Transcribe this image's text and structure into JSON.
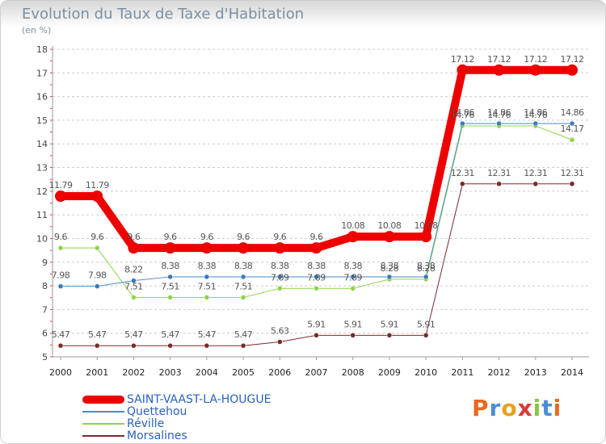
{
  "title": "Evolution du Taux de Taxe d'Habitation",
  "unit_label": "(en %)",
  "logo": {
    "letters": [
      "P",
      "r",
      "o",
      "x",
      "i",
      "t",
      "i"
    ],
    "colors": [
      "#e86a20",
      "#4a8fd6",
      "#e8a020",
      "#d83a3a",
      "#8cc63f",
      "#4a8fd6",
      "#e86a20"
    ]
  },
  "chart_data": {
    "type": "line",
    "x": [
      "2000",
      "2001",
      "2002",
      "2003",
      "2004",
      "2005",
      "2006",
      "2007",
      "2008",
      "2009",
      "2010",
      "2011",
      "2012",
      "2013",
      "2014"
    ],
    "ylim": [
      5,
      18
    ],
    "yticks": [
      5,
      6,
      7,
      8,
      9,
      10,
      11,
      12,
      13,
      14,
      15,
      16,
      17,
      18
    ],
    "grid": "horizontal-dashed",
    "legend_placement": "bottom-left",
    "series": [
      {
        "name": "SAINT-VAAST-LA-HOUGUE",
        "color": "#ee0000",
        "width": 10,
        "values": [
          11.79,
          11.79,
          9.6,
          9.6,
          9.6,
          9.6,
          9.6,
          9.6,
          10.08,
          10.08,
          10.08,
          17.12,
          17.12,
          17.12,
          17.12
        ],
        "labels": [
          "11.79",
          "11.79",
          "9.6",
          "9.6",
          "9.6",
          "9.6",
          "9.6",
          "9.6",
          "10.08",
          "10.08",
          "10.08",
          "17.12",
          "17.12",
          "17.12",
          "17.12"
        ]
      },
      {
        "name": "Quettehou",
        "color": "#4a8ac8",
        "width": 1,
        "values": [
          7.98,
          7.98,
          8.22,
          8.38,
          8.38,
          8.38,
          8.38,
          8.38,
          8.38,
          8.38,
          8.38,
          14.86,
          14.86,
          14.86,
          14.86
        ],
        "labels": [
          "7.98",
          "7.98",
          "8.22",
          "8.38",
          "8.38",
          "8.38",
          "8.38",
          "8.38",
          "8.38",
          "8.38",
          "8.38",
          "14.86",
          "14.86",
          "14.86",
          "14.86"
        ]
      },
      {
        "name": "Réville",
        "color": "#8ed44a",
        "width": 1,
        "values": [
          9.6,
          9.6,
          7.51,
          7.51,
          7.51,
          7.51,
          7.89,
          7.89,
          7.89,
          8.28,
          8.28,
          14.76,
          14.76,
          14.76,
          14.17
        ],
        "labels": [
          "9.6",
          "9.6",
          "7.51",
          "7.51",
          "7.51",
          "7.51",
          "7.89",
          "7.89",
          "7.89",
          "8.28",
          "8.28",
          "14.76",
          "14.76",
          "14.76",
          "14.17"
        ]
      },
      {
        "name": "Morsalines",
        "color": "#7a2a2a",
        "width": 1,
        "values": [
          5.47,
          5.47,
          5.47,
          5.47,
          5.47,
          5.47,
          5.63,
          5.91,
          5.91,
          5.91,
          5.91,
          12.31,
          12.31,
          12.31,
          12.31
        ],
        "labels": [
          "5.47",
          "5.47",
          "5.47",
          "5.47",
          "5.47",
          "5.47",
          "5.63",
          "5.91",
          "5.91",
          "5.91",
          "5.91",
          "12.31",
          "12.31",
          "12.31",
          "12.31"
        ]
      }
    ]
  }
}
